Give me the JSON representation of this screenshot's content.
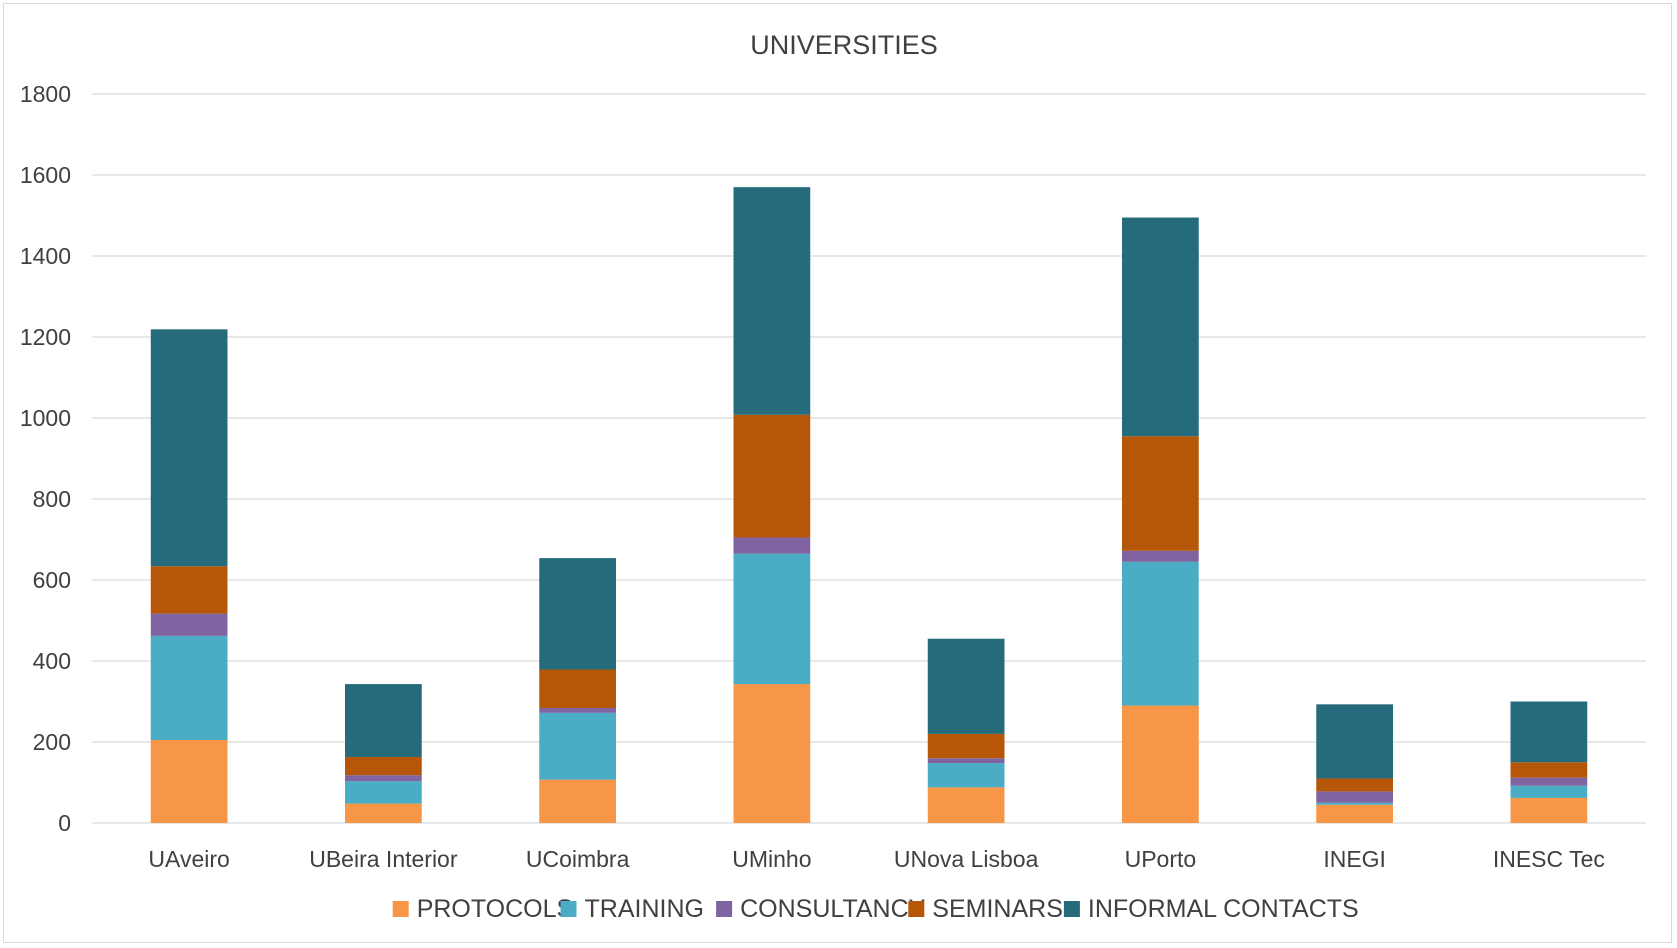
{
  "chart_data": {
    "type": "bar",
    "stacked": true,
    "title": "UNIVERSITIES",
    "xlabel": "",
    "ylabel": "",
    "ylim": [
      0,
      1800
    ],
    "yticks": [
      0,
      200,
      400,
      600,
      800,
      1000,
      1200,
      1400,
      1600,
      1800
    ],
    "grid": "horizontal",
    "legend": "bottom",
    "categories": [
      "UAveiro",
      "UBeira Interior",
      "UCoimbra",
      "UMinho",
      "UNova Lisboa",
      "UPorto",
      "INEGI",
      "INESC Tec"
    ],
    "series": [
      {
        "name": "PROTOCOLS",
        "color": "#F79646",
        "values": [
          205,
          48,
          107,
          343,
          88,
          290,
          45,
          62
        ]
      },
      {
        "name": "TRAINING",
        "color": "#4BACC6",
        "values": [
          257,
          55,
          165,
          322,
          60,
          355,
          5,
          30
        ]
      },
      {
        "name": "CONSULTANCY",
        "color": "#8064A2",
        "values": [
          55,
          15,
          12,
          40,
          12,
          27,
          28,
          20
        ]
      },
      {
        "name": "SEMINARS",
        "color": "#B65708",
        "values": [
          117,
          45,
          95,
          303,
          60,
          283,
          32,
          38
        ]
      },
      {
        "name": "INFORMAL CONTACTS",
        "color": "#256B7B",
        "values": [
          585,
          180,
          275,
          562,
          235,
          540,
          183,
          150
        ]
      }
    ]
  }
}
